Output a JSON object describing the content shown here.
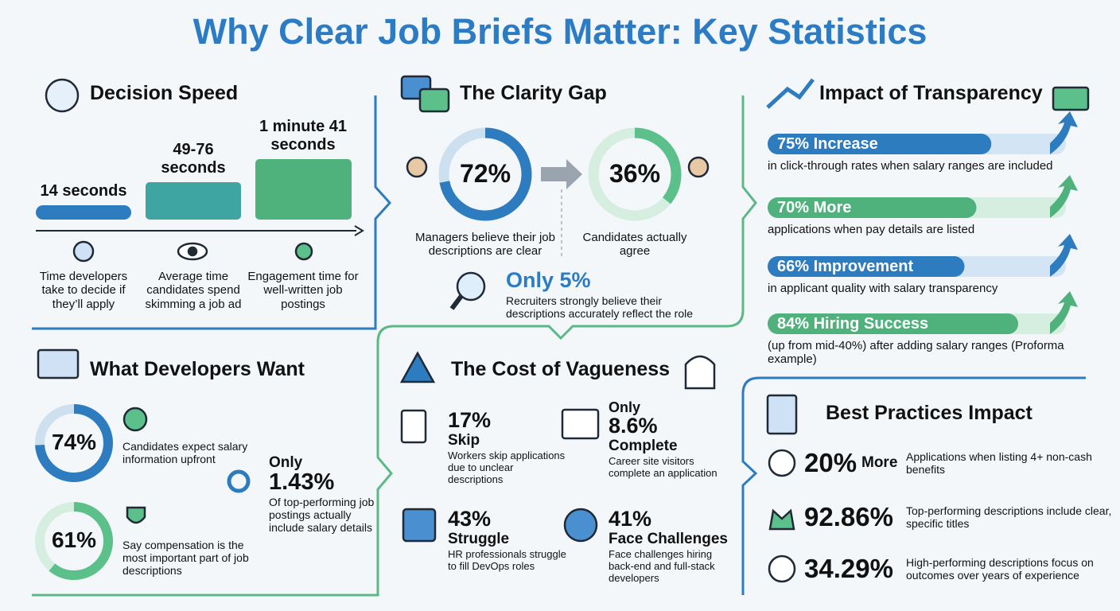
{
  "title": "Why Clear Job Briefs Matter: Key Statistics",
  "decision_speed": {
    "heading": "Decision Speed",
    "items": [
      {
        "time": "14 seconds",
        "caption": "Time developers take to decide if they’ll apply"
      },
      {
        "time": "49-76 seconds",
        "caption": "Average time candidates spend skimming a job ad"
      },
      {
        "time": "1 minute 41 seconds",
        "caption": "Engagement time for well-written job postings"
      }
    ]
  },
  "clarity_gap": {
    "heading": "The Clarity Gap",
    "managers": {
      "value": 72,
      "label": "72%",
      "caption": "Managers believe their job descriptions are clear"
    },
    "candidates": {
      "value": 36,
      "label": "36%",
      "caption": "Candidates actually agree"
    },
    "recruiters": {
      "label": "Only 5%",
      "caption": "Recruiters strongly believe their descriptions accurately reflect the role"
    }
  },
  "transparency": {
    "heading": "Impact of Transparency",
    "items": [
      {
        "value": 75,
        "label": "75% Increase",
        "caption": "in click-through rates when salary ranges are included"
      },
      {
        "value": 70,
        "label": "70% More",
        "caption": "applications when pay details are listed"
      },
      {
        "value": 66,
        "label": "66% Improvement",
        "caption": "in applicant quality with salary transparency"
      },
      {
        "value": 84,
        "label": "84% Hiring Success",
        "caption": "(up from mid-40%) after adding salary ranges (Proforma example)"
      }
    ]
  },
  "developers_want": {
    "heading": "What Developers Want",
    "donuts": [
      {
        "value": 74,
        "label": "74%",
        "caption": "Candidates expect salary information upfront"
      },
      {
        "value": 61,
        "label": "61%",
        "caption": "Say compensation is the most important part of job descriptions"
      }
    ],
    "highlight": {
      "prefix": "Only",
      "label": "1.43%",
      "caption": "Of top-performing job postings actually include salary details"
    }
  },
  "vagueness": {
    "heading": "The Cost of Vagueness",
    "items": [
      {
        "stat": "17%",
        "label": "Skip",
        "caption": "Workers skip applications due to unclear descriptions"
      },
      {
        "prefix": "Only",
        "stat": "8.6%",
        "label": "Complete",
        "caption": "Career site visitors complete an application"
      },
      {
        "stat": "43%",
        "label": "Struggle",
        "caption": "HR professionals struggle to fill DevOps roles"
      },
      {
        "stat": "41%",
        "label": "Face Challenges",
        "caption": "Face challenges hiring back-end and full-stack developers"
      }
    ]
  },
  "best_practices": {
    "heading": "Best Practices Impact",
    "items": [
      {
        "stat": "20%",
        "suffix": "More",
        "caption": "Applications when listing 4+ non-cash benefits"
      },
      {
        "stat": "92.86%",
        "caption": "Top-performing descriptions include clear, specific titles"
      },
      {
        "stat": "34.29%",
        "caption": "High-performing descriptions focus on outcomes over years of experience"
      }
    ]
  }
}
